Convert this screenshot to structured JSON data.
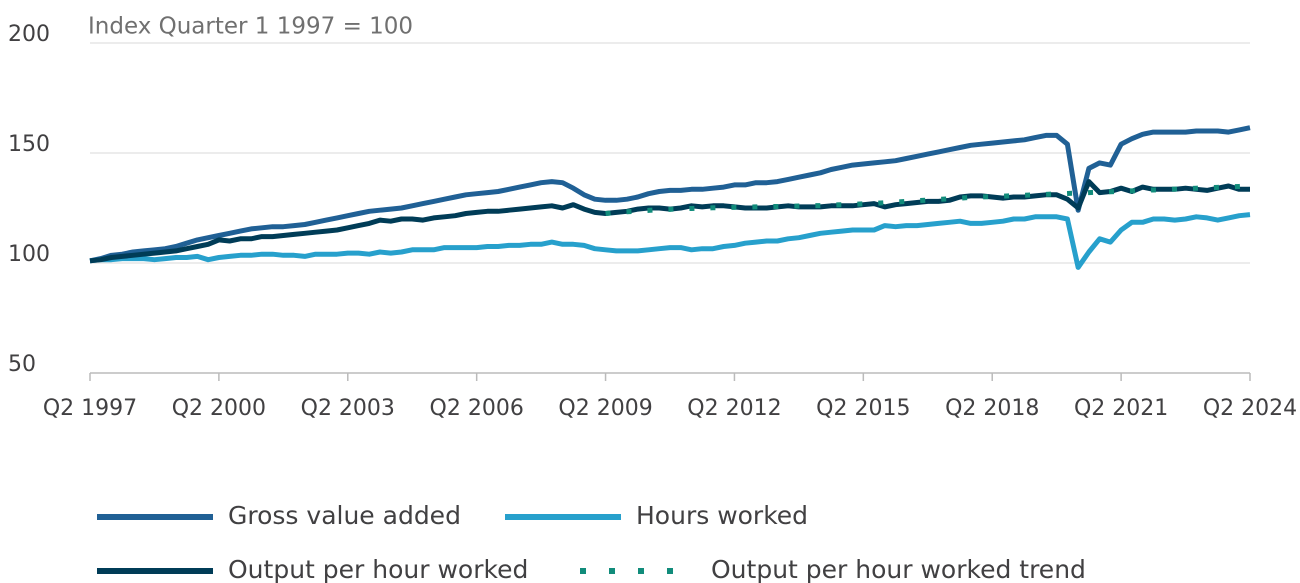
{
  "chart_data": {
    "type": "line",
    "y_label": "Index Quarter 1 1997 = 100",
    "categories": [
      "Q2 1997",
      null,
      null,
      null,
      null,
      null,
      null,
      null,
      null,
      null,
      null,
      null,
      "Q2 2000",
      null,
      null,
      null,
      null,
      null,
      null,
      null,
      null,
      null,
      null,
      null,
      "Q2 2003",
      null,
      null,
      null,
      null,
      null,
      null,
      null,
      null,
      null,
      null,
      null,
      "Q2 2006",
      null,
      null,
      null,
      null,
      null,
      null,
      null,
      null,
      null,
      null,
      null,
      "Q2 2009",
      null,
      null,
      null,
      null,
      null,
      null,
      null,
      null,
      null,
      null,
      null,
      "Q2 2012",
      null,
      null,
      null,
      null,
      null,
      null,
      null,
      null,
      null,
      null,
      null,
      "Q2 2015",
      null,
      null,
      null,
      null,
      null,
      null,
      null,
      null,
      null,
      null,
      null,
      "Q2 2018",
      null,
      null,
      null,
      null,
      null,
      null,
      null,
      null,
      null,
      null,
      null,
      "Q2 2021",
      null,
      null,
      null,
      null,
      null,
      null,
      null,
      null,
      null,
      null,
      null,
      "Q2 2024"
    ],
    "ylim": [
      50,
      200
    ],
    "yticks": [
      50,
      100,
      150,
      200
    ],
    "grid": true,
    "series": [
      {
        "name": "Gross value added",
        "color": "#206095",
        "style": "solid",
        "values": [
          101,
          102,
          103.5,
          104,
          105,
          105.5,
          106,
          106.5,
          107.5,
          109,
          110.5,
          111.5,
          112.5,
          113.5,
          114.5,
          115.5,
          116,
          116.5,
          116.5,
          117,
          117.5,
          118.5,
          119.5,
          120.5,
          121.5,
          122.5,
          123.5,
          124,
          124.5,
          125,
          126,
          127,
          128,
          129,
          130,
          131,
          131.5,
          132,
          132.5,
          133.5,
          134.5,
          135.5,
          136.5,
          137,
          136.5,
          134,
          131,
          129,
          128.5,
          128.5,
          129,
          130,
          131.5,
          132.5,
          133,
          133,
          133.5,
          133.5,
          134,
          134.5,
          135.5,
          135.5,
          136.5,
          136.5,
          137,
          138,
          139,
          140,
          141,
          142.5,
          143.5,
          144.5,
          145,
          145.5,
          146,
          146.5,
          147.5,
          148.5,
          149.5,
          150.5,
          151.5,
          152.5,
          153.5,
          154,
          154.5,
          155,
          155.5,
          156,
          157,
          158,
          158,
          154,
          124,
          143,
          145.5,
          144.5,
          154,
          156.5,
          158.5,
          159.5,
          159.5,
          159.5,
          159.5,
          160,
          160,
          160,
          159.5,
          160.5,
          161.5
        ]
      },
      {
        "name": "Hours worked",
        "color": "#27a0cc",
        "style": "solid",
        "values": [
          101,
          101.5,
          101.5,
          102,
          102,
          102,
          101.5,
          102,
          102.5,
          102.5,
          103,
          101.5,
          102.5,
          103,
          103.5,
          103.5,
          104,
          104,
          103.5,
          103.5,
          103,
          104,
          104,
          104,
          104.5,
          104.5,
          104,
          105,
          104.5,
          105,
          106,
          106,
          106,
          107,
          107,
          107,
          107,
          107.5,
          107.5,
          108,
          108,
          108.5,
          108.5,
          109.5,
          108.5,
          108.5,
          108,
          106.5,
          106,
          105.5,
          105.5,
          105.5,
          106,
          106.5,
          107,
          107,
          106,
          106.5,
          106.5,
          107.5,
          108,
          109,
          109.5,
          110,
          110,
          111,
          111.5,
          112.5,
          113.5,
          114,
          114.5,
          115,
          115,
          115,
          117,
          116.5,
          117,
          117,
          117.5,
          118,
          118.5,
          119,
          118,
          118,
          118.5,
          119,
          120,
          120,
          121,
          121,
          121,
          120,
          98,
          105,
          111,
          109.5,
          115,
          118.5,
          118.5,
          120,
          120,
          119.5,
          120,
          121,
          120.5,
          119.5,
          120.5,
          121.5,
          122
        ]
      },
      {
        "name": "Output per hour worked",
        "color": "#003c57",
        "style": "solid",
        "values": [
          101,
          101.5,
          102.5,
          103,
          103.5,
          104,
          104.5,
          105,
          105.5,
          106.5,
          107.5,
          108.5,
          110.5,
          110,
          111,
          111,
          112,
          112,
          112.5,
          113,
          113.5,
          114,
          114.5,
          115,
          116,
          117,
          118,
          119.5,
          119,
          120,
          120,
          119.5,
          120.5,
          121,
          121.5,
          122.5,
          123,
          123.5,
          123.5,
          124,
          124.5,
          125,
          125.5,
          126,
          125,
          126.5,
          124.5,
          123,
          122.5,
          123,
          123.5,
          124.5,
          125,
          125,
          124.5,
          125,
          126,
          125.5,
          126,
          126,
          125.5,
          125,
          125,
          125,
          125.5,
          126,
          125.5,
          125.5,
          125.5,
          126,
          126,
          126,
          126.5,
          127,
          125.5,
          126.5,
          127,
          127.5,
          128,
          128,
          128.5,
          130,
          130.5,
          130.5,
          130,
          129.5,
          130,
          130,
          130.5,
          131,
          131,
          129,
          125,
          137,
          132,
          132.5,
          134,
          132.5,
          134.5,
          133.5,
          133.5,
          133.5,
          134,
          133.5,
          133,
          134,
          135,
          133.5,
          133.5
        ]
      },
      {
        "name": "Output per hour worked trend",
        "color": "#118c7b",
        "style": "dotted",
        "values": [
          null,
          null,
          null,
          null,
          null,
          null,
          null,
          null,
          null,
          null,
          null,
          null,
          null,
          null,
          null,
          null,
          null,
          null,
          null,
          null,
          null,
          null,
          null,
          null,
          null,
          null,
          null,
          null,
          null,
          null,
          null,
          null,
          null,
          null,
          null,
          null,
          null,
          null,
          null,
          null,
          null,
          null,
          null,
          null,
          null,
          null,
          null,
          null,
          122.5,
          123,
          123.3,
          123.6,
          123.9,
          124.2,
          124.4,
          124.6,
          124.8,
          125,
          125.1,
          125.2,
          125.3,
          125.4,
          125.5,
          125.6,
          125.7,
          125.8,
          125.9,
          126,
          126.1,
          126.3,
          126.5,
          126.7,
          126.9,
          127.1,
          127.4,
          127.7,
          128,
          128.3,
          128.6,
          128.9,
          129.2,
          129.5,
          129.8,
          130,
          130.2,
          130.4,
          130.6,
          130.8,
          131,
          131.2,
          131.4,
          131.6,
          131.8,
          132,
          132.2,
          132.4,
          132.6,
          132.8,
          133,
          133.2,
          133.4,
          133.6,
          133.8,
          134,
          134.2,
          134.4,
          134.6,
          134.8,
          135
        ]
      }
    ]
  }
}
